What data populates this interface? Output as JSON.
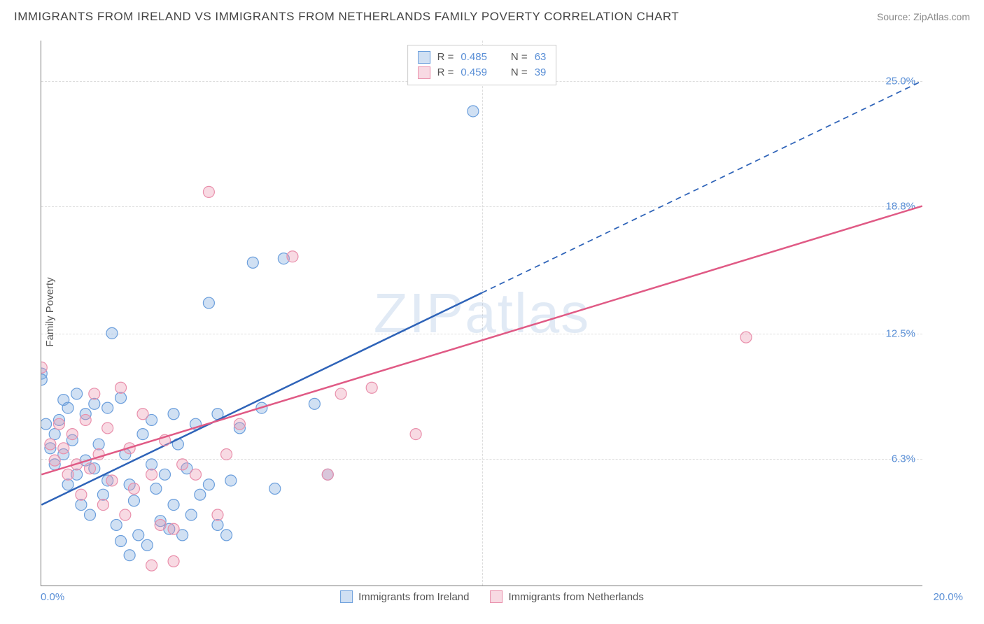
{
  "header": {
    "title": "IMMIGRANTS FROM IRELAND VS IMMIGRANTS FROM NETHERLANDS FAMILY POVERTY CORRELATION CHART",
    "source_prefix": "Source: ",
    "source": "ZipAtlas.com"
  },
  "chart": {
    "type": "scatter",
    "y_label": "Family Poverty",
    "xlim": [
      0,
      20
    ],
    "ylim": [
      0,
      27
    ],
    "x_ticks": [
      {
        "v": 0,
        "label": "0.0%"
      },
      {
        "v": 20,
        "label": "20.0%"
      }
    ],
    "right_y_ticks": [
      {
        "v": 6.3,
        "label": "6.3%"
      },
      {
        "v": 12.5,
        "label": "12.5%"
      },
      {
        "v": 18.8,
        "label": "18.8%"
      },
      {
        "v": 25.0,
        "label": "25.0%"
      }
    ],
    "x_vline_at": 10,
    "background_color": "#ffffff",
    "grid_color": "#dddddd",
    "axis_color": "#777777",
    "label_fontsize": 15,
    "title_fontsize": 17,
    "watermark": "ZIPatlas",
    "series": [
      {
        "id": "ireland",
        "label": "Immigrants from Ireland",
        "color_fill": "rgba(120,165,220,0.35)",
        "color_stroke": "#6a9edc",
        "trend_color": "#2e63b8",
        "trend_width": 2.5,
        "r": 0.485,
        "n": 63,
        "marker_radius": 8,
        "trend": {
          "x1": 0,
          "y1": 4.0,
          "x2": 10,
          "y2": 14.5,
          "x2_ext": 20,
          "y2_ext": 25.0,
          "dash_from_x": 10
        },
        "points": [
          [
            0.0,
            10.5
          ],
          [
            0.0,
            10.2
          ],
          [
            0.1,
            8.0
          ],
          [
            0.2,
            6.8
          ],
          [
            0.3,
            7.5
          ],
          [
            0.3,
            6.0
          ],
          [
            0.4,
            8.2
          ],
          [
            0.5,
            9.2
          ],
          [
            0.5,
            6.5
          ],
          [
            0.6,
            5.0
          ],
          [
            0.6,
            8.8
          ],
          [
            0.7,
            7.2
          ],
          [
            0.8,
            5.5
          ],
          [
            0.8,
            9.5
          ],
          [
            0.9,
            4.0
          ],
          [
            1.0,
            8.5
          ],
          [
            1.0,
            6.2
          ],
          [
            1.1,
            3.5
          ],
          [
            1.2,
            9.0
          ],
          [
            1.2,
            5.8
          ],
          [
            1.3,
            7.0
          ],
          [
            1.4,
            4.5
          ],
          [
            1.5,
            8.8
          ],
          [
            1.5,
            5.2
          ],
          [
            1.6,
            12.5
          ],
          [
            1.7,
            3.0
          ],
          [
            1.8,
            9.3
          ],
          [
            1.8,
            2.2
          ],
          [
            1.9,
            6.5
          ],
          [
            2.0,
            5.0
          ],
          [
            2.0,
            1.5
          ],
          [
            2.1,
            4.2
          ],
          [
            2.2,
            2.5
          ],
          [
            2.3,
            7.5
          ],
          [
            2.4,
            2.0
          ],
          [
            2.5,
            8.2
          ],
          [
            2.5,
            6.0
          ],
          [
            2.6,
            4.8
          ],
          [
            2.7,
            3.2
          ],
          [
            2.8,
            5.5
          ],
          [
            2.9,
            2.8
          ],
          [
            3.0,
            8.5
          ],
          [
            3.0,
            4.0
          ],
          [
            3.1,
            7.0
          ],
          [
            3.2,
            2.5
          ],
          [
            3.3,
            5.8
          ],
          [
            3.4,
            3.5
          ],
          [
            3.5,
            8.0
          ],
          [
            3.6,
            4.5
          ],
          [
            3.8,
            14.0
          ],
          [
            3.8,
            5.0
          ],
          [
            4.0,
            3.0
          ],
          [
            4.0,
            8.5
          ],
          [
            4.2,
            2.5
          ],
          [
            4.3,
            5.2
          ],
          [
            4.5,
            7.8
          ],
          [
            4.8,
            16.0
          ],
          [
            5.0,
            8.8
          ],
          [
            5.3,
            4.8
          ],
          [
            5.5,
            16.2
          ],
          [
            6.2,
            9.0
          ],
          [
            6.5,
            5.5
          ],
          [
            9.8,
            23.5
          ]
        ]
      },
      {
        "id": "netherlands",
        "label": "Immigrants from Netherlands",
        "color_fill": "rgba(235,150,175,0.35)",
        "color_stroke": "#e98fab",
        "trend_color": "#e05a85",
        "trend_width": 2.5,
        "r": 0.459,
        "n": 39,
        "marker_radius": 8,
        "trend": {
          "x1": 0,
          "y1": 5.5,
          "x2": 20,
          "y2": 18.8
        },
        "points": [
          [
            0.0,
            10.8
          ],
          [
            0.2,
            7.0
          ],
          [
            0.3,
            6.2
          ],
          [
            0.4,
            8.0
          ],
          [
            0.5,
            6.8
          ],
          [
            0.6,
            5.5
          ],
          [
            0.7,
            7.5
          ],
          [
            0.8,
            6.0
          ],
          [
            0.9,
            4.5
          ],
          [
            1.0,
            8.2
          ],
          [
            1.1,
            5.8
          ],
          [
            1.2,
            9.5
          ],
          [
            1.3,
            6.5
          ],
          [
            1.4,
            4.0
          ],
          [
            1.5,
            7.8
          ],
          [
            1.6,
            5.2
          ],
          [
            1.8,
            9.8
          ],
          [
            1.9,
            3.5
          ],
          [
            2.0,
            6.8
          ],
          [
            2.1,
            4.8
          ],
          [
            2.3,
            8.5
          ],
          [
            2.5,
            1.0
          ],
          [
            2.5,
            5.5
          ],
          [
            2.7,
            3.0
          ],
          [
            2.8,
            7.2
          ],
          [
            3.0,
            2.8
          ],
          [
            3.0,
            1.2
          ],
          [
            3.2,
            6.0
          ],
          [
            3.5,
            5.5
          ],
          [
            3.8,
            19.5
          ],
          [
            4.0,
            3.5
          ],
          [
            4.2,
            6.5
          ],
          [
            4.5,
            8.0
          ],
          [
            5.7,
            16.3
          ],
          [
            6.5,
            5.5
          ],
          [
            6.8,
            9.5
          ],
          [
            7.5,
            9.8
          ],
          [
            8.5,
            7.5
          ],
          [
            16.0,
            12.3
          ]
        ]
      }
    ],
    "legend_top": {
      "r_label": "R =",
      "n_label": "N ="
    }
  }
}
